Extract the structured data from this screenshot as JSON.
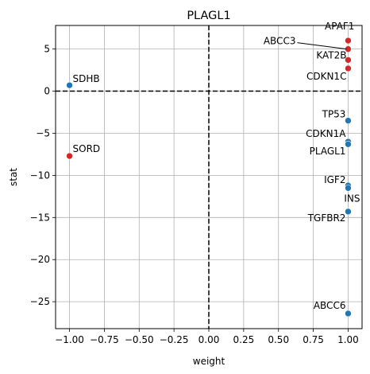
{
  "chart_data": {
    "type": "scatter",
    "title": "PLAGL1",
    "xlabel": "weight",
    "ylabel": "stat",
    "xlim": [
      -1.1,
      1.1
    ],
    "ylim": [
      -28.2,
      7.8
    ],
    "xticks": [
      -1.0,
      -0.75,
      -0.5,
      -0.25,
      0.0,
      0.25,
      0.5,
      0.75,
      1.0
    ],
    "xtick_labels": [
      "−1.00",
      "−0.75",
      "−0.50",
      "−0.25",
      "0.00",
      "0.25",
      "0.50",
      "0.75",
      "1.00"
    ],
    "yticks": [
      -25,
      -20,
      -15,
      -10,
      -5,
      0,
      5
    ],
    "ytick_labels": [
      "−25",
      "−20",
      "−15",
      "−10",
      "−5",
      "0",
      "5"
    ],
    "grid": true,
    "reference_lines": {
      "x": 0,
      "y": 0
    },
    "colors": {
      "positive": "#d62728",
      "negative": "#1f77b4"
    },
    "points": [
      {
        "name": "APAF1",
        "x": 1.0,
        "y": 6.0,
        "color": "positive"
      },
      {
        "name": "ABCC3",
        "x": 1.0,
        "y": 5.0,
        "color": "positive"
      },
      {
        "name": "KAT2B",
        "x": 1.0,
        "y": 3.7,
        "color": "positive"
      },
      {
        "name": "CDKN1C",
        "x": 1.0,
        "y": 2.7,
        "color": "positive"
      },
      {
        "name": "SDHB",
        "x": -1.0,
        "y": 0.7,
        "color": "negative"
      },
      {
        "name": "TP53",
        "x": 1.0,
        "y": -3.5,
        "color": "negative"
      },
      {
        "name": "CDKN1A",
        "x": 1.0,
        "y": -6.0,
        "color": "negative"
      },
      {
        "name": "PLAGL1",
        "x": 1.0,
        "y": -6.3,
        "color": "negative"
      },
      {
        "name": "SORD",
        "x": -1.0,
        "y": -7.7,
        "color": "positive"
      },
      {
        "name": "IGF2",
        "x": 1.0,
        "y": -11.2,
        "color": "negative"
      },
      {
        "name": "INS",
        "x": 1.0,
        "y": -11.5,
        "color": "negative"
      },
      {
        "name": "TGFBR2",
        "x": 1.0,
        "y": -14.3,
        "color": "negative"
      },
      {
        "name": "ABCC6",
        "x": 1.0,
        "y": -26.4,
        "color": "negative"
      }
    ]
  }
}
